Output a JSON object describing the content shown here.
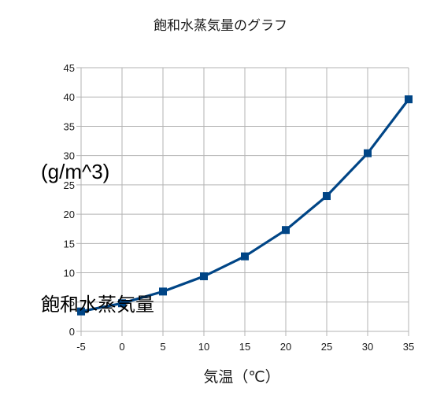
{
  "chart_data": {
    "type": "line",
    "title": "飽和水蒸気量のグラフ",
    "xlabel": "気温（℃）",
    "ylabel": "(g/m^3)",
    "ylabel_name": "飽和水蒸気量",
    "x": [
      -5,
      0,
      5,
      10,
      15,
      20,
      25,
      30,
      35
    ],
    "xlim": [
      -5,
      35
    ],
    "ylim": [
      0,
      45
    ],
    "x_ticks": [
      "-5",
      "0",
      "5",
      "10",
      "15",
      "20",
      "25",
      "30",
      "35"
    ],
    "y_ticks": [
      "0",
      "5",
      "10",
      "15",
      "20",
      "25",
      "30",
      "35",
      "40",
      "45"
    ],
    "grid": true,
    "series": [
      {
        "values": [
          3.4,
          4.8,
          6.8,
          9.4,
          12.8,
          17.3,
          23.1,
          30.4,
          39.6
        ],
        "color": "#004586",
        "marker": "square"
      }
    ]
  }
}
